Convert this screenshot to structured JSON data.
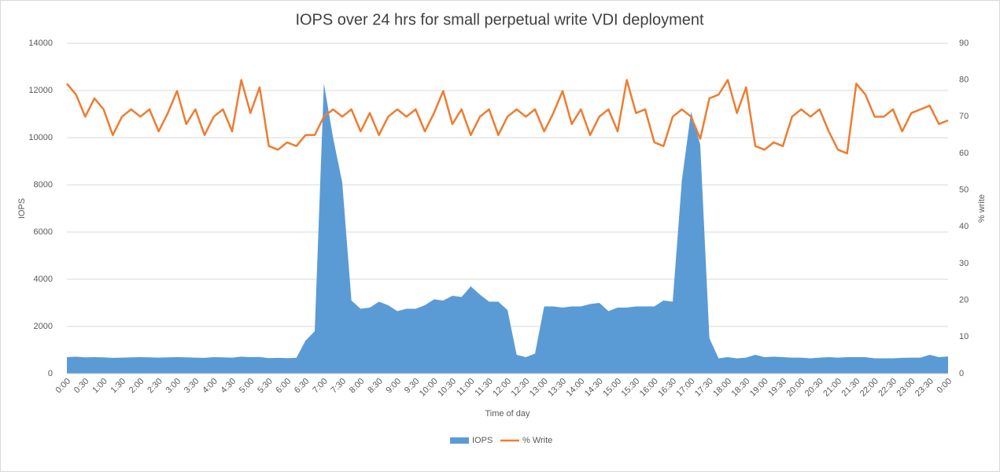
{
  "chart_data": {
    "type": "combo",
    "title": "IOPS over 24 hrs for small perpetual write VDI deployment",
    "x_label": "Time of day",
    "y_label": "IOPS",
    "y2_label": "% write",
    "categories": [
      "0:00",
      null,
      "0:30",
      null,
      "1:00",
      null,
      "1:30",
      null,
      "2:00",
      null,
      "2:30",
      null,
      "3:00",
      null,
      "3:30",
      null,
      "4:00",
      null,
      "4:30",
      null,
      "5:00",
      null,
      "5:30",
      null,
      "6:00",
      null,
      "6:30",
      null,
      "7:00",
      null,
      "7:30",
      null,
      "8:00",
      null,
      "8:30",
      null,
      "9:00",
      null,
      "9:30",
      null,
      "10:00",
      null,
      "10:30",
      null,
      "11:00",
      null,
      "11:30",
      null,
      "12:00",
      null,
      "12:30",
      null,
      "13:00",
      null,
      "13:30",
      null,
      "14:00",
      null,
      "14:30",
      null,
      "15:00",
      null,
      "15:30",
      null,
      "16:00",
      null,
      "16:30",
      null,
      "17:00",
      null,
      "17:30",
      null,
      "18:00",
      null,
      "18:30",
      null,
      "19:00",
      null,
      "19:30",
      null,
      "20:00",
      null,
      "20:30",
      null,
      "21:00",
      null,
      "21:30",
      null,
      "22:00",
      null,
      "22:30",
      null,
      "23:00",
      null,
      "23:30",
      null,
      "0:00"
    ],
    "series": [
      {
        "name": "IOPS",
        "type": "area",
        "color": "#5b9bd5",
        "axis": "y",
        "values": [
          700,
          720,
          690,
          700,
          690,
          670,
          680,
          690,
          700,
          690,
          680,
          690,
          700,
          690,
          680,
          670,
          700,
          690,
          680,
          720,
          700,
          710,
          660,
          670,
          660,
          670,
          1400,
          1800,
          12300,
          10000,
          8100,
          3100,
          2750,
          2800,
          3050,
          2900,
          2650,
          2750,
          2750,
          2900,
          3150,
          3100,
          3300,
          3250,
          3700,
          3350,
          3050,
          3050,
          2700,
          800,
          700,
          850,
          2850,
          2850,
          2800,
          2850,
          2850,
          2950,
          3000,
          2650,
          2800,
          2800,
          2850,
          2850,
          2850,
          3100,
          3050,
          8200,
          11100,
          9700,
          1500,
          650,
          700,
          650,
          680,
          800,
          700,
          720,
          700,
          680,
          680,
          650,
          680,
          700,
          680,
          700,
          700,
          700,
          650,
          650,
          650,
          670,
          680,
          680,
          800,
          700,
          730
        ]
      },
      {
        "name": "% Write",
        "type": "line",
        "color": "#ed7d31",
        "axis": "y2",
        "values": [
          79,
          76,
          70,
          75,
          72,
          65,
          70,
          72,
          70,
          72,
          66,
          71,
          77,
          68,
          72,
          65,
          70,
          72,
          66,
          80,
          71,
          78,
          62,
          61,
          63,
          62,
          65,
          65,
          70,
          72,
          70,
          72,
          66,
          71,
          65,
          70,
          72,
          70,
          72,
          66,
          71,
          77,
          68,
          72,
          65,
          70,
          72,
          65,
          70,
          72,
          70,
          72,
          66,
          71,
          77,
          68,
          72,
          65,
          70,
          72,
          66,
          80,
          71,
          72,
          63,
          62,
          70,
          72,
          70,
          64,
          75,
          76,
          80,
          71,
          78,
          62,
          61,
          63,
          62,
          70,
          72,
          70,
          72,
          66,
          61,
          60,
          79,
          76,
          70,
          70,
          72,
          66,
          71,
          72,
          73,
          68,
          69
        ]
      }
    ],
    "ylim": [
      0,
      14000
    ],
    "yticks": [
      0,
      2000,
      4000,
      6000,
      8000,
      10000,
      12000,
      14000
    ],
    "y2lim": [
      0,
      90
    ],
    "y2ticks": [
      0,
      10,
      20,
      30,
      40,
      50,
      60,
      70,
      80,
      90
    ],
    "grid": true,
    "legend": "bottom"
  }
}
